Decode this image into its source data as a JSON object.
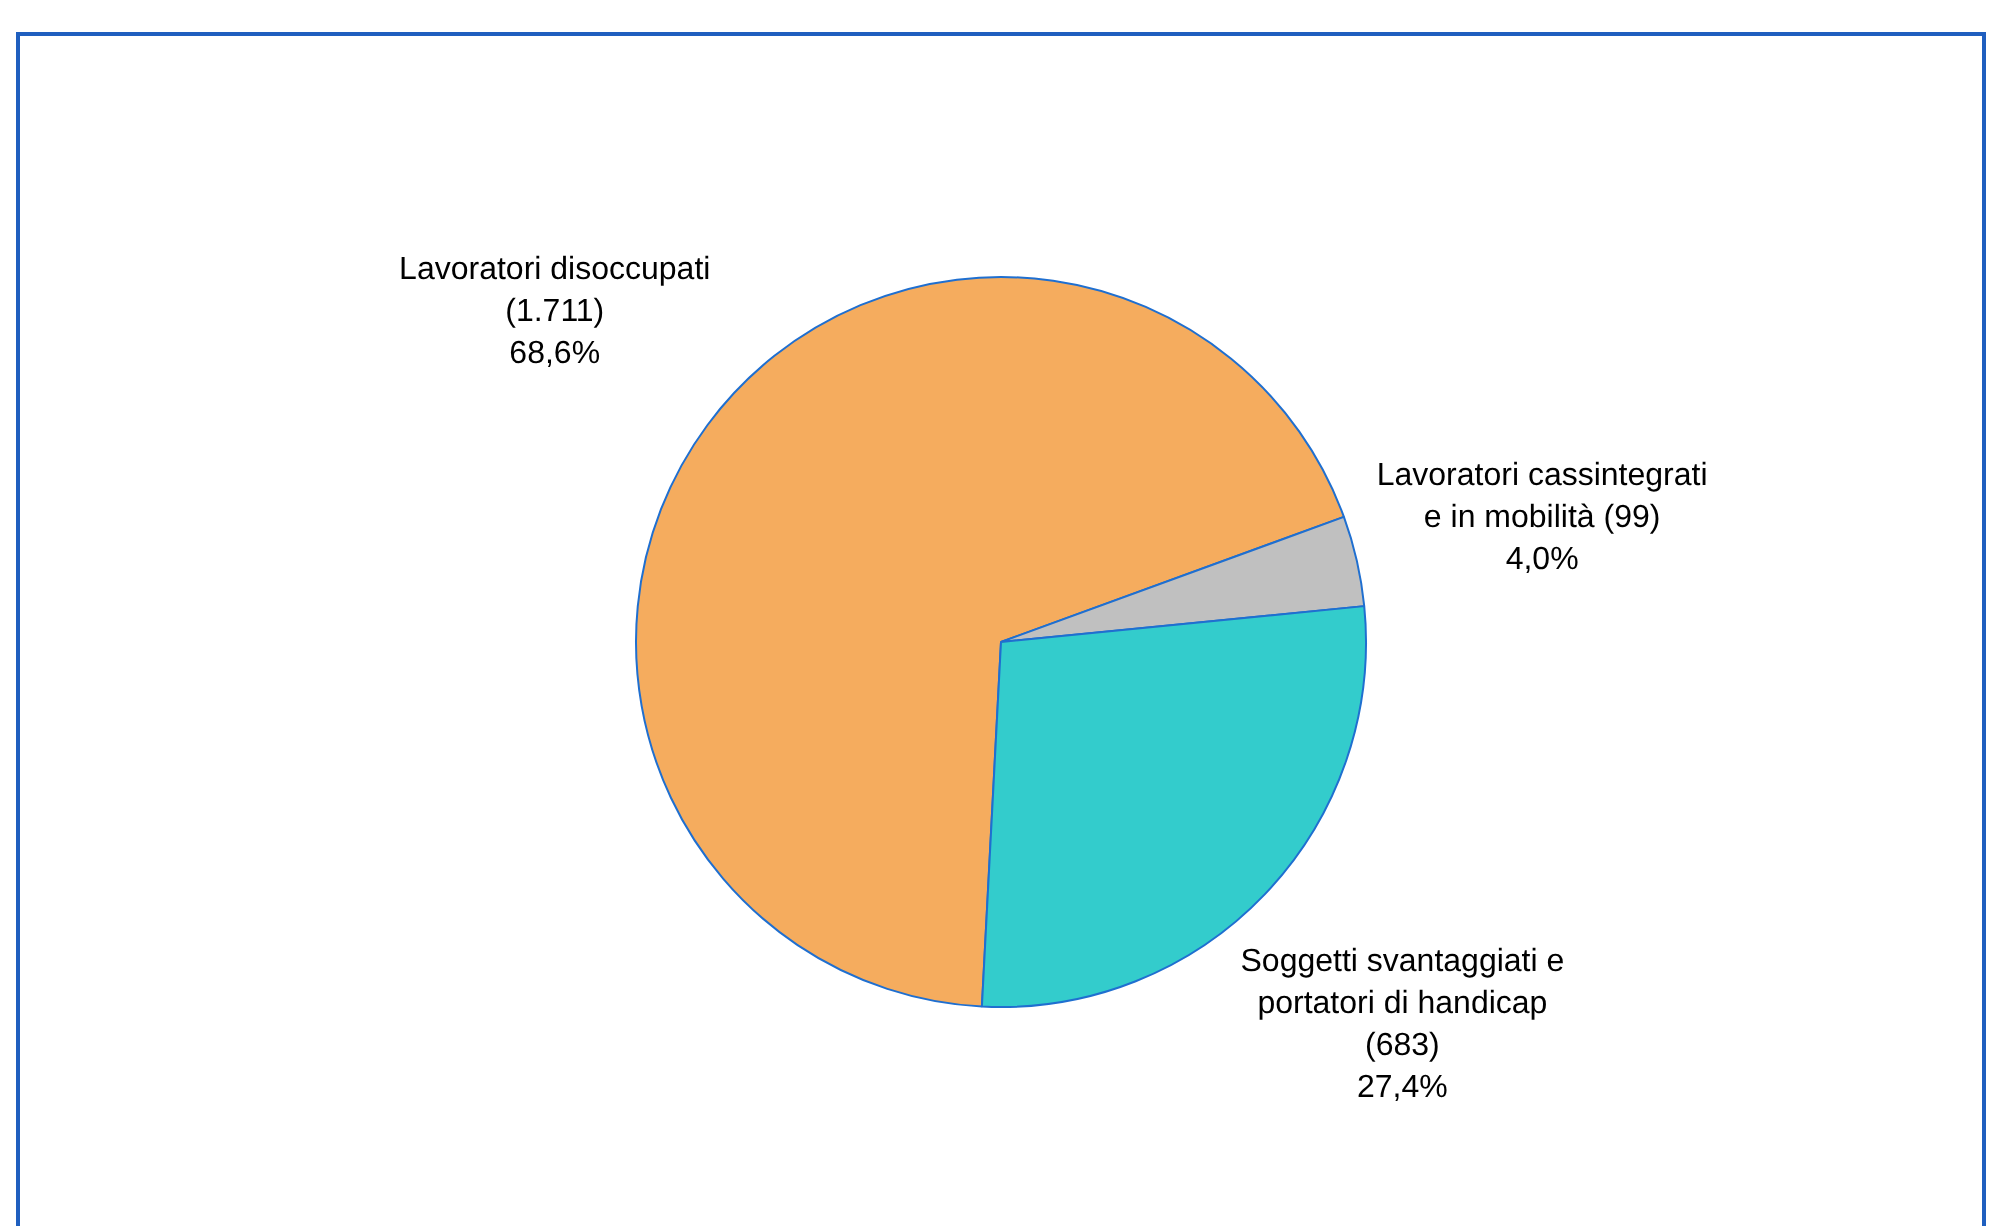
{
  "chart_data": {
    "type": "pie",
    "categories": [
      "Lavoratori disoccupati (1.711)",
      "Lavoratori cassintegrati e in mobilità (99)",
      "Soggetti svantaggiati e portatori di handicap (683)"
    ],
    "values": [
      68.6,
      4.0,
      27.4
    ],
    "colors": [
      "#f5ac5e",
      "#c0c0c0",
      "#33cccc"
    ],
    "value_labels": [
      "68,6%",
      "4,0%",
      "27,4%"
    ]
  }
}
